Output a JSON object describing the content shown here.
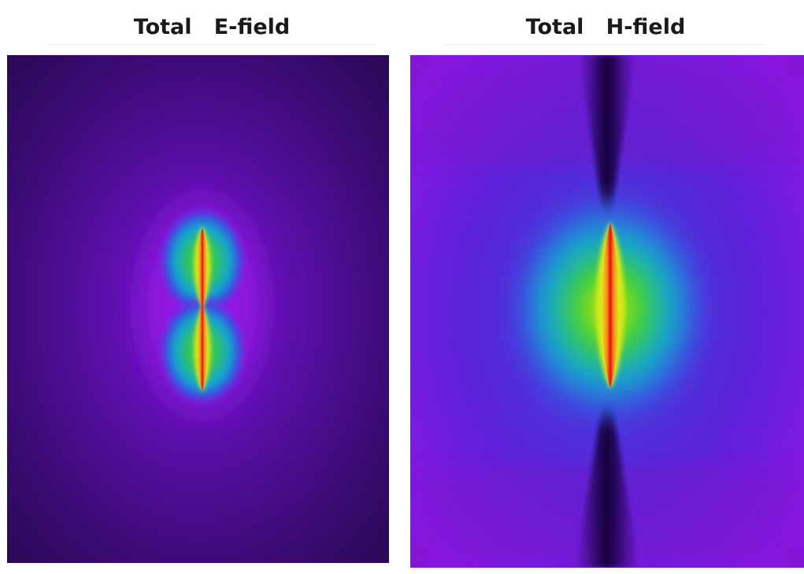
{
  "panels": {
    "e_field": {
      "title": "Total   E-field"
    },
    "h_field": {
      "title": "Total   H-field"
    }
  },
  "colors": {
    "background_dark": "#2a0a55",
    "violet": "#8c17e6",
    "blue": "#3a4ee0",
    "cyan": "#13a6cf",
    "green": "#3fd22a",
    "yellow": "#d9e81a",
    "orange": "#ff8a1a",
    "red": "#e01010",
    "null_dark": "#14063a"
  }
}
